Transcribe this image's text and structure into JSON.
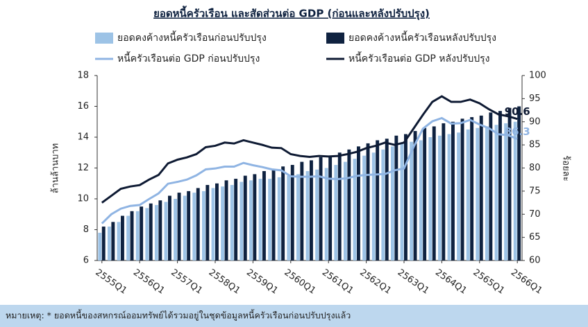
{
  "chart_data": {
    "type": "bar",
    "title": "ยอดหนี้ครัวเรือน และสัดส่วนต่อ GDP (ก่อนและหลังปรับปรุง)",
    "y_label": "ล้านล้านบาท",
    "y2_label": "ร้อยละ",
    "footnote": "หมายเหตุ: * ยอดหนี้ของสหกรณ์ออมทรัพย์ได้รวมอยู่ในชุดข้อมูลหนี้ครัวเรือนก่อนปรับปรุงแล้ว",
    "categories": [
      "2555Q1",
      null,
      null,
      null,
      "2556Q1",
      null,
      null,
      null,
      "2557Q1",
      null,
      null,
      null,
      "2558Q1",
      null,
      null,
      null,
      "2559Q1",
      null,
      null,
      null,
      "2560Q1",
      null,
      null,
      null,
      "2561Q1",
      null,
      null,
      null,
      "2562Q1",
      null,
      null,
      null,
      "2563Q1",
      null,
      null,
      null,
      "2564Q1",
      null,
      null,
      null,
      "2565Q1",
      null,
      null,
      null,
      "2566Q1"
    ],
    "ylim": [
      6,
      18
    ],
    "yticks": [
      6,
      8,
      10,
      12,
      14,
      16,
      18
    ],
    "y2lim": [
      60,
      100
    ],
    "y2ticks": [
      60,
      65,
      70,
      75,
      80,
      85,
      90,
      95,
      100
    ],
    "grid": false,
    "series": [
      {
        "name": "ยอดคงค้างหนี้ครัวเรือนก่อนปรับปรุง",
        "type": "bar",
        "color": "#9dc3e6",
        "values": [
          7.8,
          8.2,
          8.5,
          8.9,
          9.2,
          9.4,
          9.6,
          9.8,
          10.0,
          10.2,
          10.4,
          10.5,
          10.7,
          10.8,
          10.9,
          11.1,
          11.2,
          11.3,
          11.3,
          11.4,
          11.5,
          11.6,
          11.8,
          11.9,
          12.0,
          12.2,
          12.4,
          12.6,
          12.8,
          13.0,
          13.2,
          13.4,
          13.6,
          13.7,
          13.8,
          14.0,
          14.1,
          14.2,
          14.3,
          14.5,
          14.6,
          14.7,
          14.8,
          14.9,
          15.0
        ]
      },
      {
        "name": "ยอดคงค้างหนี้ครัวเรือนหลังปรับปรุง",
        "type": "bar",
        "color": "#0f2240",
        "values": [
          8.2,
          8.5,
          8.9,
          9.2,
          9.5,
          9.7,
          9.9,
          10.2,
          10.4,
          10.5,
          10.7,
          10.9,
          11.0,
          11.2,
          11.3,
          11.5,
          11.6,
          11.8,
          11.9,
          12.1,
          12.2,
          12.4,
          12.5,
          12.7,
          12.8,
          13.0,
          13.2,
          13.4,
          13.6,
          13.8,
          13.9,
          14.1,
          14.2,
          14.4,
          14.6,
          14.7,
          14.9,
          15.0,
          15.2,
          15.3,
          15.4,
          15.6,
          15.7,
          15.9,
          16.0
        ]
      },
      {
        "name": "หนี้ครัวเรือนต่อ GDP ก่อนปรับปรุง",
        "type": "line",
        "axis": "y2",
        "color": "#8fb4e3",
        "values": [
          68,
          70,
          71.2,
          71.8,
          72,
          73.3,
          74.5,
          76.6,
          77,
          77.5,
          78.4,
          79.7,
          79.9,
          80.3,
          80.3,
          81.1,
          80.6,
          80.2,
          79.7,
          79.5,
          78.2,
          78.1,
          78.1,
          78.2,
          77.7,
          77.6,
          77.8,
          78.3,
          78.5,
          78.6,
          78.7,
          79.5,
          79.9,
          84.5,
          88.5,
          90.1,
          90.8,
          89.6,
          89.7,
          90.4,
          89.4,
          88.6,
          87.3,
          87.1,
          86.3
        ]
      },
      {
        "name": "หนี้ครัวเรือนต่อ GDP หลังปรับปรุง",
        "type": "line",
        "axis": "y2",
        "color": "#0e1a33",
        "values": [
          72.5,
          74,
          75.5,
          76,
          76.3,
          77.5,
          78.5,
          81,
          81.8,
          82.3,
          83,
          84.5,
          84.8,
          85.5,
          85.3,
          86,
          85.5,
          85,
          84.4,
          84.3,
          83,
          82.6,
          82.4,
          82.6,
          82.5,
          82.6,
          83,
          83.5,
          84.3,
          84.8,
          85.5,
          85,
          85.5,
          88.5,
          91.5,
          94.3,
          95.5,
          94.3,
          94.3,
          94.8,
          94,
          92.7,
          91.6,
          91.2,
          90.6
        ]
      }
    ]
  }
}
